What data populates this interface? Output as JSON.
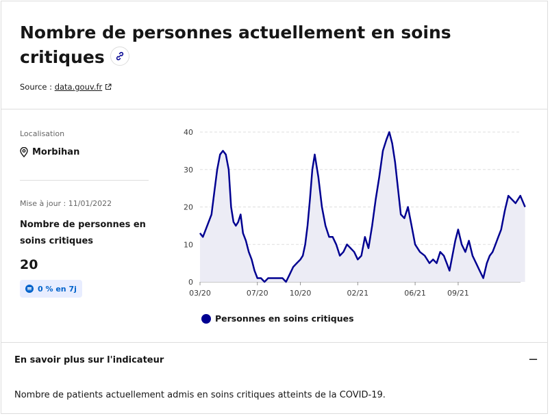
{
  "header": {
    "title": "Nombre de personnes actuellement en soins critiques",
    "source_prefix": "Source :",
    "source_link": "data.gouv.fr"
  },
  "sidebar": {
    "location_label": "Localisation",
    "location_value": "Morbihan",
    "update_label": "Mise à jour : 11/01/2022",
    "kpi_title": "Nombre de personnes en soins critiques",
    "kpi_value": "20",
    "kpi_badge": "0 % en 7j"
  },
  "accordion": {
    "title": "En savoir plus sur l'indicateur",
    "description": "Nombre de patients actuellement admis en soins critiques atteints de la COVID-19."
  },
  "colors": {
    "series": "#000091",
    "area": "#ececf5",
    "badge_bg": "#e8edff",
    "badge_text": "#0063cb"
  },
  "icons": [
    "link-icon",
    "external-link-icon",
    "location-pin-icon",
    "equal-icon",
    "minus-icon"
  ],
  "chart_data": {
    "type": "area",
    "ylim": [
      0,
      40
    ],
    "yticks": [
      0,
      10,
      20,
      30,
      40
    ],
    "xtick_labels": [
      "03/20",
      "07/20",
      "10/20",
      "02/21",
      "06/21",
      "09/21"
    ],
    "grid": true,
    "legend_position": "bottom",
    "series": [
      {
        "name": "Personnes en soins critiques",
        "points": [
          [
            "03/20",
            13
          ],
          [
            "03/20",
            12
          ],
          [
            "03/20",
            14
          ],
          [
            "03/20",
            16
          ],
          [
            "03/20",
            18
          ],
          [
            "04/20",
            24
          ],
          [
            "04/20",
            30
          ],
          [
            "04/20",
            34
          ],
          [
            "04/20",
            35
          ],
          [
            "04/20",
            34
          ],
          [
            "05/20",
            30
          ],
          [
            "05/20",
            20
          ],
          [
            "05/20",
            16
          ],
          [
            "05/20",
            15
          ],
          [
            "05/20",
            16
          ],
          [
            "05/20",
            18
          ],
          [
            "06/20",
            13
          ],
          [
            "06/20",
            11
          ],
          [
            "06/20",
            8
          ],
          [
            "06/20",
            6
          ],
          [
            "06/20",
            3
          ],
          [
            "07/20",
            1
          ],
          [
            "07/20",
            1
          ],
          [
            "07/20",
            0
          ],
          [
            "07/20",
            1
          ],
          [
            "08/20",
            1
          ],
          [
            "08/20",
            1
          ],
          [
            "08/20",
            1
          ],
          [
            "08/20",
            1
          ],
          [
            "09/20",
            0
          ],
          [
            "09/20",
            2
          ],
          [
            "09/20",
            4
          ],
          [
            "09/20",
            5
          ],
          [
            "10/20",
            6
          ],
          [
            "10/20",
            7
          ],
          [
            "10/20",
            10
          ],
          [
            "10/20",
            15
          ],
          [
            "10/20",
            22
          ],
          [
            "10/20",
            30
          ],
          [
            "11/20",
            34
          ],
          [
            "11/20",
            28
          ],
          [
            "11/20",
            20
          ],
          [
            "11/20",
            15
          ],
          [
            "12/20",
            12
          ],
          [
            "12/20",
            12
          ],
          [
            "12/20",
            10
          ],
          [
            "12/20",
            7
          ],
          [
            "01/21",
            8
          ],
          [
            "01/21",
            10
          ],
          [
            "01/21",
            9
          ],
          [
            "01/21",
            8
          ],
          [
            "02/21",
            6
          ],
          [
            "02/21",
            7
          ],
          [
            "02/21",
            12
          ],
          [
            "02/21",
            9
          ],
          [
            "03/21",
            15
          ],
          [
            "03/21",
            22
          ],
          [
            "03/21",
            28
          ],
          [
            "03/21",
            35
          ],
          [
            "04/21",
            38
          ],
          [
            "04/21",
            40
          ],
          [
            "04/21",
            37
          ],
          [
            "04/21",
            32
          ],
          [
            "04/21",
            25
          ],
          [
            "05/21",
            18
          ],
          [
            "05/21",
            17
          ],
          [
            "05/21",
            20
          ],
          [
            "05/21",
            15
          ],
          [
            "06/21",
            10
          ],
          [
            "06/21",
            8
          ],
          [
            "06/21",
            7
          ],
          [
            "07/21",
            5
          ],
          [
            "07/21",
            6
          ],
          [
            "07/21",
            5
          ],
          [
            "07/21",
            8
          ],
          [
            "08/21",
            7
          ],
          [
            "08/21",
            5
          ],
          [
            "08/21",
            3
          ],
          [
            "08/21",
            7
          ],
          [
            "08/21",
            11
          ],
          [
            "09/21",
            14
          ],
          [
            "09/21",
            10
          ],
          [
            "09/21",
            8
          ],
          [
            "09/21",
            11
          ],
          [
            "10/21",
            7
          ],
          [
            "10/21",
            5
          ],
          [
            "10/21",
            3
          ],
          [
            "10/21",
            1
          ],
          [
            "11/21",
            5
          ],
          [
            "11/21",
            7
          ],
          [
            "11/21",
            8
          ],
          [
            "11/21",
            10
          ],
          [
            "11/21",
            12
          ],
          [
            "12/21",
            14
          ],
          [
            "12/21",
            19
          ],
          [
            "12/21",
            23
          ],
          [
            "12/21",
            22
          ],
          [
            "01/22",
            21
          ],
          [
            "01/22",
            23
          ],
          [
            "01/22",
            20
          ]
        ]
      }
    ]
  }
}
